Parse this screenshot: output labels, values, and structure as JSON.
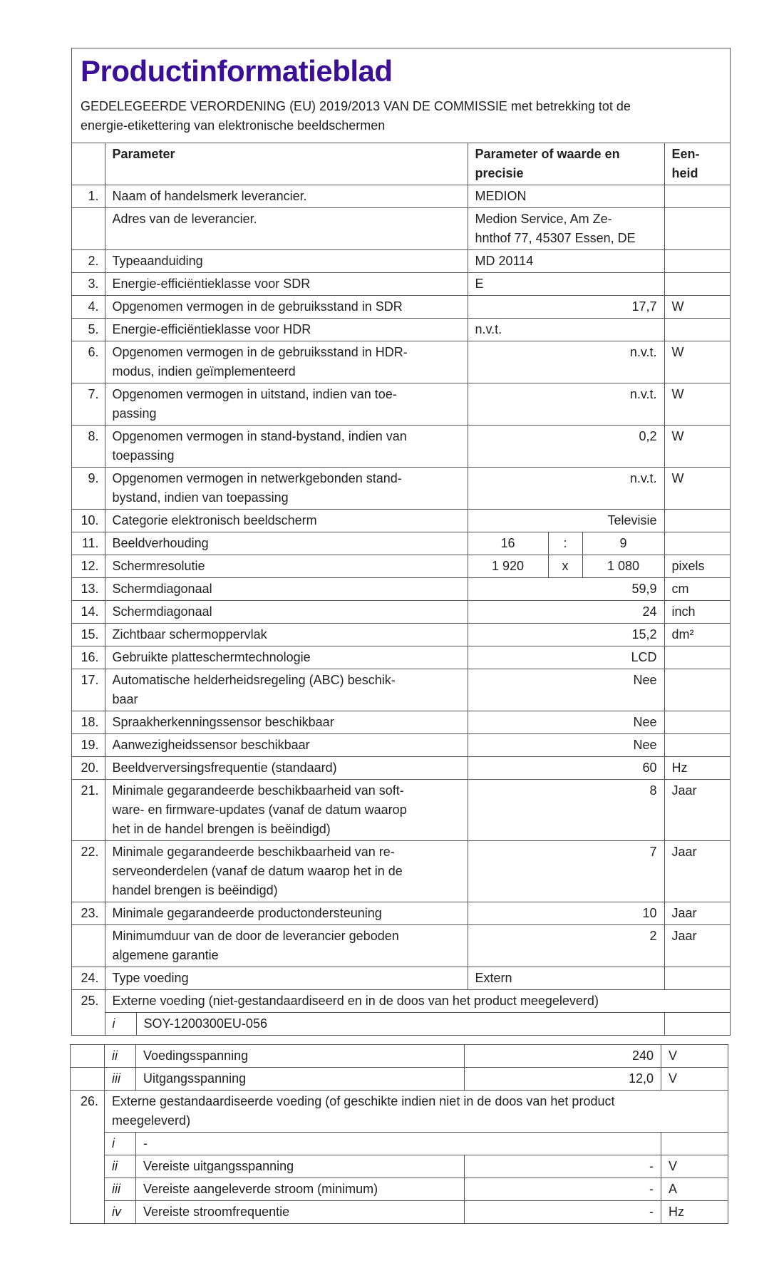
{
  "title": "Productinformatieblad",
  "subtitle": "GEDELEGEERDE VERORDENING (EU) 2019/2013 VAN DE COMMISSIE met betrekking tot de\nenergie-etikettering van elektronische beeldschermen",
  "header": {
    "param": "Parameter",
    "value": "Parameter of waarde en\nprecisie",
    "unit": "Een-\nheid"
  },
  "rows": [
    {
      "num": "1.",
      "param": "Naam of handelsmerk leverancier.",
      "value": "MEDION",
      "unit": "",
      "align": "left"
    },
    {
      "num": "",
      "param": "Adres van de leverancier.",
      "value": "Medion Service, Am Ze-\nhnthof 77, 45307 Essen, DE",
      "unit": "",
      "align": "left"
    },
    {
      "num": "2.",
      "param": "Typeaanduiding",
      "value": "MD 20114",
      "unit": "",
      "align": "left"
    },
    {
      "num": "3.",
      "param": "Energie-efficiëntieklasse voor SDR",
      "value": "E",
      "unit": "",
      "align": "left"
    },
    {
      "num": "4.",
      "param": "Opgenomen vermogen in de gebruiksstand in SDR",
      "value": "17,7",
      "unit": "W",
      "align": "right"
    },
    {
      "num": "5.",
      "param": "Energie-efficiëntieklasse voor HDR",
      "value": "n.v.t.",
      "unit": "",
      "align": "left"
    },
    {
      "num": "6.",
      "param": "Opgenomen vermogen in de gebruiksstand in HDR-\nmodus, indien geïmplementeerd",
      "value": "n.v.t.",
      "unit": "W",
      "align": "right"
    },
    {
      "num": "7.",
      "param": "Opgenomen vermogen in uitstand, indien van toe-\npassing",
      "value": "n.v.t.",
      "unit": "W",
      "align": "right"
    },
    {
      "num": "8.",
      "param": "Opgenomen vermogen in stand-bystand, indien van\ntoepassing",
      "value": "0,2",
      "unit": "W",
      "align": "right"
    },
    {
      "num": "9.",
      "param": "Opgenomen vermogen in netwerkgebonden stand-\nbystand, indien van toepassing",
      "value": "n.v.t.",
      "unit": "W",
      "align": "right"
    },
    {
      "num": "10.",
      "param": "Categorie elektronisch beeldscherm",
      "value": "Televisie",
      "unit": "",
      "align": "right"
    }
  ],
  "split_rows": [
    {
      "num": "11.",
      "param": "Beeldverhouding",
      "a": "16",
      "sep": ":",
      "b": "9",
      "unit": ""
    },
    {
      "num": "12.",
      "param": "Schermresolutie",
      "a": "1 920",
      "sep": "x",
      "b": "1 080",
      "unit": "pixels"
    }
  ],
  "rows2": [
    {
      "num": "13.",
      "param": "Schermdiagonaal",
      "value": "59,9",
      "unit": "cm",
      "align": "right"
    },
    {
      "num": "14.",
      "param": "Schermdiagonaal",
      "value": "24",
      "unit": "inch",
      "align": "right"
    },
    {
      "num": "15.",
      "param": "Zichtbaar schermoppervlak",
      "value": "15,2",
      "unit": "dm²",
      "align": "right"
    },
    {
      "num": "16.",
      "param": "Gebruikte platteschermtechnologie",
      "value": "LCD",
      "unit": "",
      "align": "right"
    },
    {
      "num": "17.",
      "param": "Automatische helderheidsregeling (ABC) beschik-\nbaar",
      "value": "Nee",
      "unit": "",
      "align": "right"
    },
    {
      "num": "18.",
      "param": "Spraakherkenningssensor beschikbaar",
      "value": "Nee",
      "unit": "",
      "align": "right"
    },
    {
      "num": "19.",
      "param": "Aanwezigheidssensor beschikbaar",
      "value": "Nee",
      "unit": "",
      "align": "right"
    },
    {
      "num": "20.",
      "param": "Beeldverversingsfrequentie (standaard)",
      "value": "60",
      "unit": "Hz",
      "align": "right"
    },
    {
      "num": "21.",
      "param": "Minimale gegarandeerde beschikbaarheid van soft-\nware- en firmware-updates (vanaf de datum waarop\nhet in de handel brengen is beëindigd)",
      "value": "8",
      "unit": "Jaar",
      "align": "right"
    },
    {
      "num": "22.",
      "param": "Minimale gegarandeerde beschikbaarheid van re-\nserveonderdelen (vanaf de datum waarop het in de\nhandel brengen is beëindigd)",
      "value": "7",
      "unit": "Jaar",
      "align": "right"
    },
    {
      "num": "23.",
      "param": "Minimale gegarandeerde productondersteuning",
      "value": "10",
      "unit": "Jaar",
      "align": "right"
    },
    {
      "num": "",
      "param": "Minimumduur van de door de leverancier geboden\nalgemene garantie",
      "value": "2",
      "unit": "Jaar",
      "align": "right"
    },
    {
      "num": "24.",
      "param": "Type voeding",
      "value": "Extern",
      "unit": "",
      "align": "left"
    }
  ],
  "row25": {
    "num": "25.",
    "param": "Externe voeding (niet-gestandaardiseerd en in de doos van het product meegeleverd)",
    "sub": [
      {
        "idx": "i",
        "text": "SOY-1200300EU-056"
      }
    ]
  },
  "row25b": [
    {
      "idx": "ii",
      "param": "Voedingsspanning",
      "value": "240",
      "unit": "V"
    },
    {
      "idx": "iii",
      "param": "Uitgangsspanning",
      "value": "12,0",
      "unit": "V"
    }
  ],
  "row26": {
    "num": "26.",
    "param": "Externe gestandaardiseerde voeding (of geschikte indien niet in de doos van het product\nmeegeleverd)",
    "sub_i": {
      "idx": "i",
      "text": "-"
    },
    "sub": [
      {
        "idx": "ii",
        "param": "Vereiste uitgangsspanning",
        "value": "-",
        "unit": "V"
      },
      {
        "idx": "iii",
        "param": "Vereiste aangeleverde stroom (minimum)",
        "value": "-",
        "unit": "A"
      },
      {
        "idx": "iv",
        "param": "Vereiste stroomfrequentie",
        "value": "-",
        "unit": "Hz"
      }
    ]
  }
}
